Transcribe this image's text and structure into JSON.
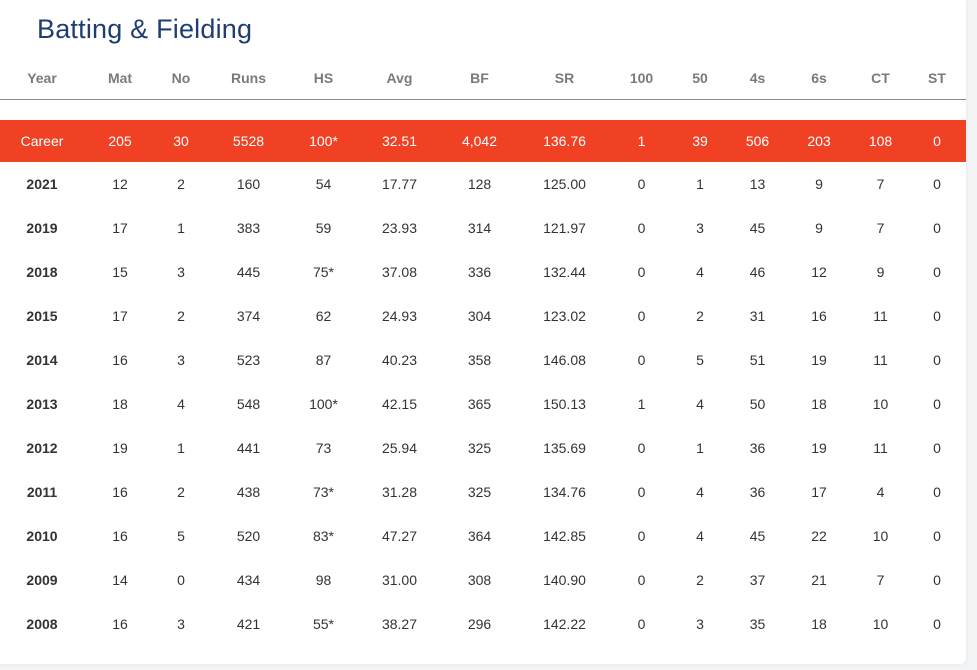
{
  "title": "Batting & Fielding",
  "columns": [
    "Year",
    "Mat",
    "No",
    "Runs",
    "HS",
    "Avg",
    "BF",
    "SR",
    "100",
    "50",
    "4s",
    "6s",
    "CT",
    "ST"
  ],
  "career": [
    "Career",
    "205",
    "30",
    "5528",
    "100*",
    "32.51",
    "4,042",
    "136.76",
    "1",
    "39",
    "506",
    "203",
    "108",
    "0"
  ],
  "rows": [
    [
      "2021",
      "12",
      "2",
      "160",
      "54",
      "17.77",
      "128",
      "125.00",
      "0",
      "1",
      "13",
      "9",
      "7",
      "0"
    ],
    [
      "2019",
      "17",
      "1",
      "383",
      "59",
      "23.93",
      "314",
      "121.97",
      "0",
      "3",
      "45",
      "9",
      "7",
      "0"
    ],
    [
      "2018",
      "15",
      "3",
      "445",
      "75*",
      "37.08",
      "336",
      "132.44",
      "0",
      "4",
      "46",
      "12",
      "9",
      "0"
    ],
    [
      "2015",
      "17",
      "2",
      "374",
      "62",
      "24.93",
      "304",
      "123.02",
      "0",
      "2",
      "31",
      "16",
      "11",
      "0"
    ],
    [
      "2014",
      "16",
      "3",
      "523",
      "87",
      "40.23",
      "358",
      "146.08",
      "0",
      "5",
      "51",
      "19",
      "11",
      "0"
    ],
    [
      "2013",
      "18",
      "4",
      "548",
      "100*",
      "42.15",
      "365",
      "150.13",
      "1",
      "4",
      "50",
      "18",
      "10",
      "0"
    ],
    [
      "2012",
      "19",
      "1",
      "441",
      "73",
      "25.94",
      "325",
      "135.69",
      "0",
      "1",
      "36",
      "19",
      "11",
      "0"
    ],
    [
      "2011",
      "16",
      "2",
      "438",
      "73*",
      "31.28",
      "325",
      "134.76",
      "0",
      "4",
      "36",
      "17",
      "4",
      "0"
    ],
    [
      "2010",
      "16",
      "5",
      "520",
      "83*",
      "47.27",
      "364",
      "142.85",
      "0",
      "4",
      "45",
      "22",
      "10",
      "0"
    ],
    [
      "2009",
      "14",
      "0",
      "434",
      "98",
      "31.00",
      "308",
      "140.90",
      "0",
      "2",
      "37",
      "21",
      "7",
      "0"
    ],
    [
      "2008",
      "16",
      "3",
      "421",
      "55*",
      "38.27",
      "296",
      "142.22",
      "0",
      "3",
      "35",
      "18",
      "10",
      "0"
    ]
  ],
  "colors": {
    "accent": "#f04124",
    "title": "#1f3c73"
  }
}
